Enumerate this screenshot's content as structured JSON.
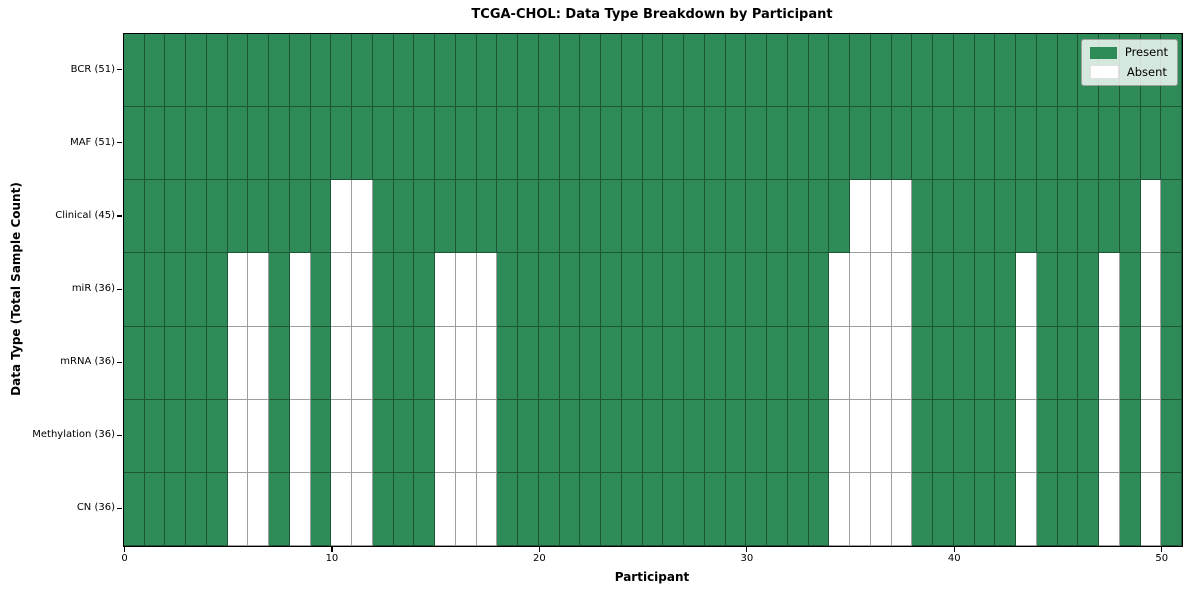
{
  "title": "TCGA-CHOL: Data Type Breakdown by Participant",
  "x_axis": {
    "label": "Participant",
    "ticks": [
      "0",
      "10",
      "20",
      "30",
      "40",
      "50"
    ],
    "tick_values": [
      0,
      10,
      20,
      30,
      40,
      50
    ]
  },
  "y_axis": {
    "label": "Data Type (Total Sample Count)"
  },
  "legend": {
    "entries": [
      {
        "label": "Present",
        "color": "#2E8B57"
      },
      {
        "label": "Absent",
        "color": "#FFFFFF"
      }
    ]
  },
  "colors": {
    "present": "#2E8B57",
    "absent": "#FFFFFF",
    "grid_line": "rgba(0,0,0,0.38)",
    "spine": "#000000"
  },
  "chart_data": {
    "type": "heatmap",
    "title": "TCGA-CHOL: Data Type Breakdown by Participant",
    "xlabel": "Participant",
    "ylabel": "Data Type (Total Sample Count)",
    "x_range": [
      0,
      51
    ],
    "n_participants": 51,
    "x_tick_values": [
      0,
      10,
      20,
      30,
      40,
      50
    ],
    "legend_position": "upper right",
    "grid": true,
    "cell_states": [
      "Present",
      "Absent"
    ],
    "rows": [
      {
        "label": "BCR (51)",
        "data_type": "BCR",
        "present_count": 51,
        "absent_participants": []
      },
      {
        "label": "MAF (51)",
        "data_type": "MAF",
        "present_count": 51,
        "absent_participants": []
      },
      {
        "label": "Clinical (45)",
        "data_type": "Clinical",
        "present_count": 45,
        "absent_participants": [
          10,
          11,
          35,
          36,
          37,
          49
        ]
      },
      {
        "label": "miR (36)",
        "data_type": "miR",
        "present_count": 36,
        "absent_participants": [
          5,
          6,
          8,
          10,
          11,
          15,
          16,
          17,
          34,
          35,
          36,
          37,
          43,
          47,
          49
        ]
      },
      {
        "label": "mRNA (36)",
        "data_type": "mRNA",
        "present_count": 36,
        "absent_participants": [
          5,
          6,
          8,
          10,
          11,
          15,
          16,
          17,
          34,
          35,
          36,
          37,
          43,
          47,
          49
        ]
      },
      {
        "label": "Methylation (36)",
        "data_type": "Methylation",
        "present_count": 36,
        "absent_participants": [
          5,
          6,
          8,
          10,
          11,
          15,
          16,
          17,
          34,
          35,
          36,
          37,
          43,
          47,
          49
        ]
      },
      {
        "label": "CN (36)",
        "data_type": "CN",
        "present_count": 36,
        "absent_participants": [
          5,
          6,
          8,
          10,
          11,
          15,
          16,
          17,
          34,
          35,
          36,
          37,
          43,
          47,
          49
        ]
      }
    ]
  }
}
